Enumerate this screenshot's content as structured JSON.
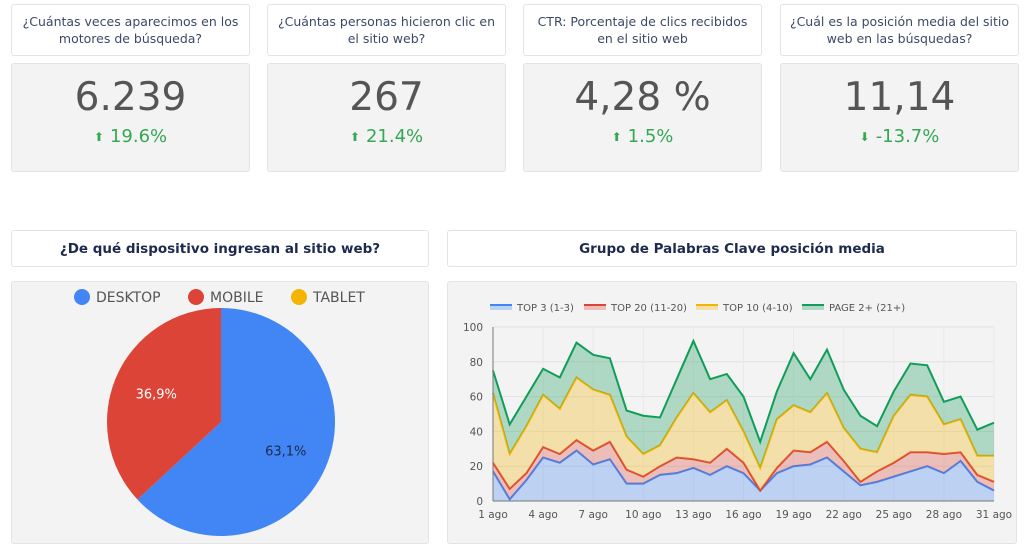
{
  "kpis": [
    {
      "question": "¿Cuántas veces aparecimos en los motores de búsqueda?",
      "value": "6.239",
      "delta": "19.6%",
      "direction": "up"
    },
    {
      "question": "¿Cuántas personas hicieron clic en el sitio web?",
      "value": "267",
      "delta": "21.4%",
      "direction": "up"
    },
    {
      "question": "CTR: Porcentaje de clics recibidos en el sitio web",
      "value": "4,28 %",
      "delta": "1.5%",
      "direction": "up"
    },
    {
      "question": "¿Cuál es la posición media del sitio web en las búsquedas?",
      "value": "11,14",
      "delta": "-13.7%",
      "direction": "down"
    }
  ],
  "colors": {
    "up": "#34a853",
    "down": "#34a853"
  },
  "chart_data": [
    {
      "type": "pie",
      "title": "¿De qué dispositivo ingresan al sitio web?",
      "labels": [
        "DESKTOP",
        "MOBILE",
        "TABLET"
      ],
      "values": [
        63.1,
        36.9,
        0
      ],
      "data_labels": [
        "63,1%",
        "36,9%",
        ""
      ],
      "colors": [
        "#4285f4",
        "#db4437",
        "#f4b400"
      ],
      "legend": "top"
    },
    {
      "type": "area",
      "stacked": true,
      "title": "Grupo de Palabras Clave posición media",
      "x": [
        "1 ago",
        "2 ago",
        "3 ago",
        "4 ago",
        "5 ago",
        "6 ago",
        "7 ago",
        "8 ago",
        "9 ago",
        "10 ago",
        "11 ago",
        "12 ago",
        "13 ago",
        "14 ago",
        "15 ago",
        "16 ago",
        "17 ago",
        "18 ago",
        "19 ago",
        "20 ago",
        "21 ago",
        "22 ago",
        "23 ago",
        "24 ago",
        "25 ago",
        "26 ago",
        "27 ago",
        "28 ago",
        "29 ago",
        "30 ago",
        "31 ago"
      ],
      "xticks": [
        "1 ago",
        "4 ago",
        "7 ago",
        "10 ago",
        "13 ago",
        "16 ago",
        "19 ago",
        "22 ago",
        "25 ago",
        "28 ago",
        "31 ago"
      ],
      "yticks": [
        0,
        20,
        40,
        60,
        80,
        100
      ],
      "ylim": [
        0,
        100
      ],
      "grid": true,
      "legend": "top",
      "series": [
        {
          "name": "TOP 3 (1-3)",
          "color": "#4285f4",
          "values": [
            17,
            1,
            12,
            25,
            22,
            29,
            21,
            24,
            10,
            10,
            15,
            16,
            19,
            15,
            20,
            16,
            6,
            16,
            20,
            21,
            25,
            17,
            9,
            11,
            14,
            17,
            20,
            16,
            23,
            11,
            6
          ]
        },
        {
          "name": "TOP 20 (11-20)",
          "color": "#db4437",
          "values": [
            5,
            6,
            4,
            6,
            5,
            6,
            8,
            10,
            8,
            4,
            5,
            9,
            5,
            7,
            10,
            6,
            0,
            3,
            9,
            7,
            9,
            6,
            2,
            6,
            8,
            11,
            8,
            11,
            5,
            4,
            5
          ]
        },
        {
          "name": "TOP 10 (4-10)",
          "color": "#f4b400",
          "values": [
            40,
            20,
            27,
            30,
            26,
            36,
            35,
            27,
            19,
            13,
            12,
            23,
            38,
            29,
            28,
            18,
            13,
            28,
            26,
            23,
            28,
            19,
            19,
            11,
            27,
            33,
            32,
            17,
            19,
            11,
            15
          ]
        },
        {
          "name": "PAGE 2+ (21+)",
          "color": "#0f9d58",
          "values": [
            13,
            17,
            17,
            15,
            18,
            20,
            20,
            21,
            15,
            22,
            16,
            22,
            30,
            19,
            15,
            20,
            15,
            16,
            30,
            19,
            25,
            22,
            19,
            15,
            14,
            18,
            18,
            13,
            13,
            15,
            19
          ]
        }
      ]
    }
  ]
}
